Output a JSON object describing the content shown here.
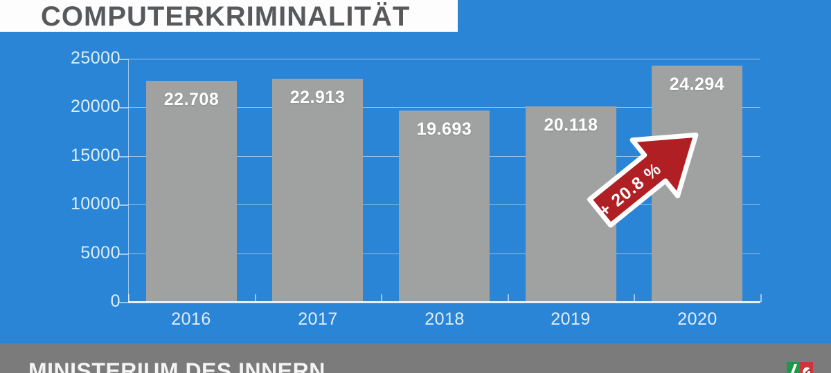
{
  "header": {
    "title": "COMPUTERKRIMINALITÄT"
  },
  "footer": {
    "text": "MINISTERIUM DES INNERN",
    "logo": "nrw-state-logo"
  },
  "colors": {
    "background": "#2b85d7",
    "bar": "#a0a1a1",
    "footer_bg": "#7b7b7b",
    "title_text": "#58595b",
    "arrow_red": "#b01f24",
    "axis_text": "#ddeefb",
    "value_text": "#ffffff"
  },
  "chart_data": {
    "type": "bar",
    "title": "COMPUTERKRIMINALITÄT",
    "categories": [
      "2016",
      "2017",
      "2018",
      "2019",
      "2020"
    ],
    "values": [
      22708,
      22913,
      19693,
      20118,
      24294
    ],
    "value_labels": [
      "22.708",
      "22.913",
      "19.693",
      "20.118",
      "24.294"
    ],
    "xlabel": "",
    "ylabel": "",
    "ylim": [
      0,
      25000
    ],
    "y_ticks": [
      0,
      5000,
      10000,
      15000,
      20000,
      25000
    ],
    "grid": true,
    "legend": false,
    "annotation": {
      "text": "+ 20.8 %",
      "shape": "arrow-up-right",
      "from_category": "2019",
      "to_category": "2020"
    }
  }
}
